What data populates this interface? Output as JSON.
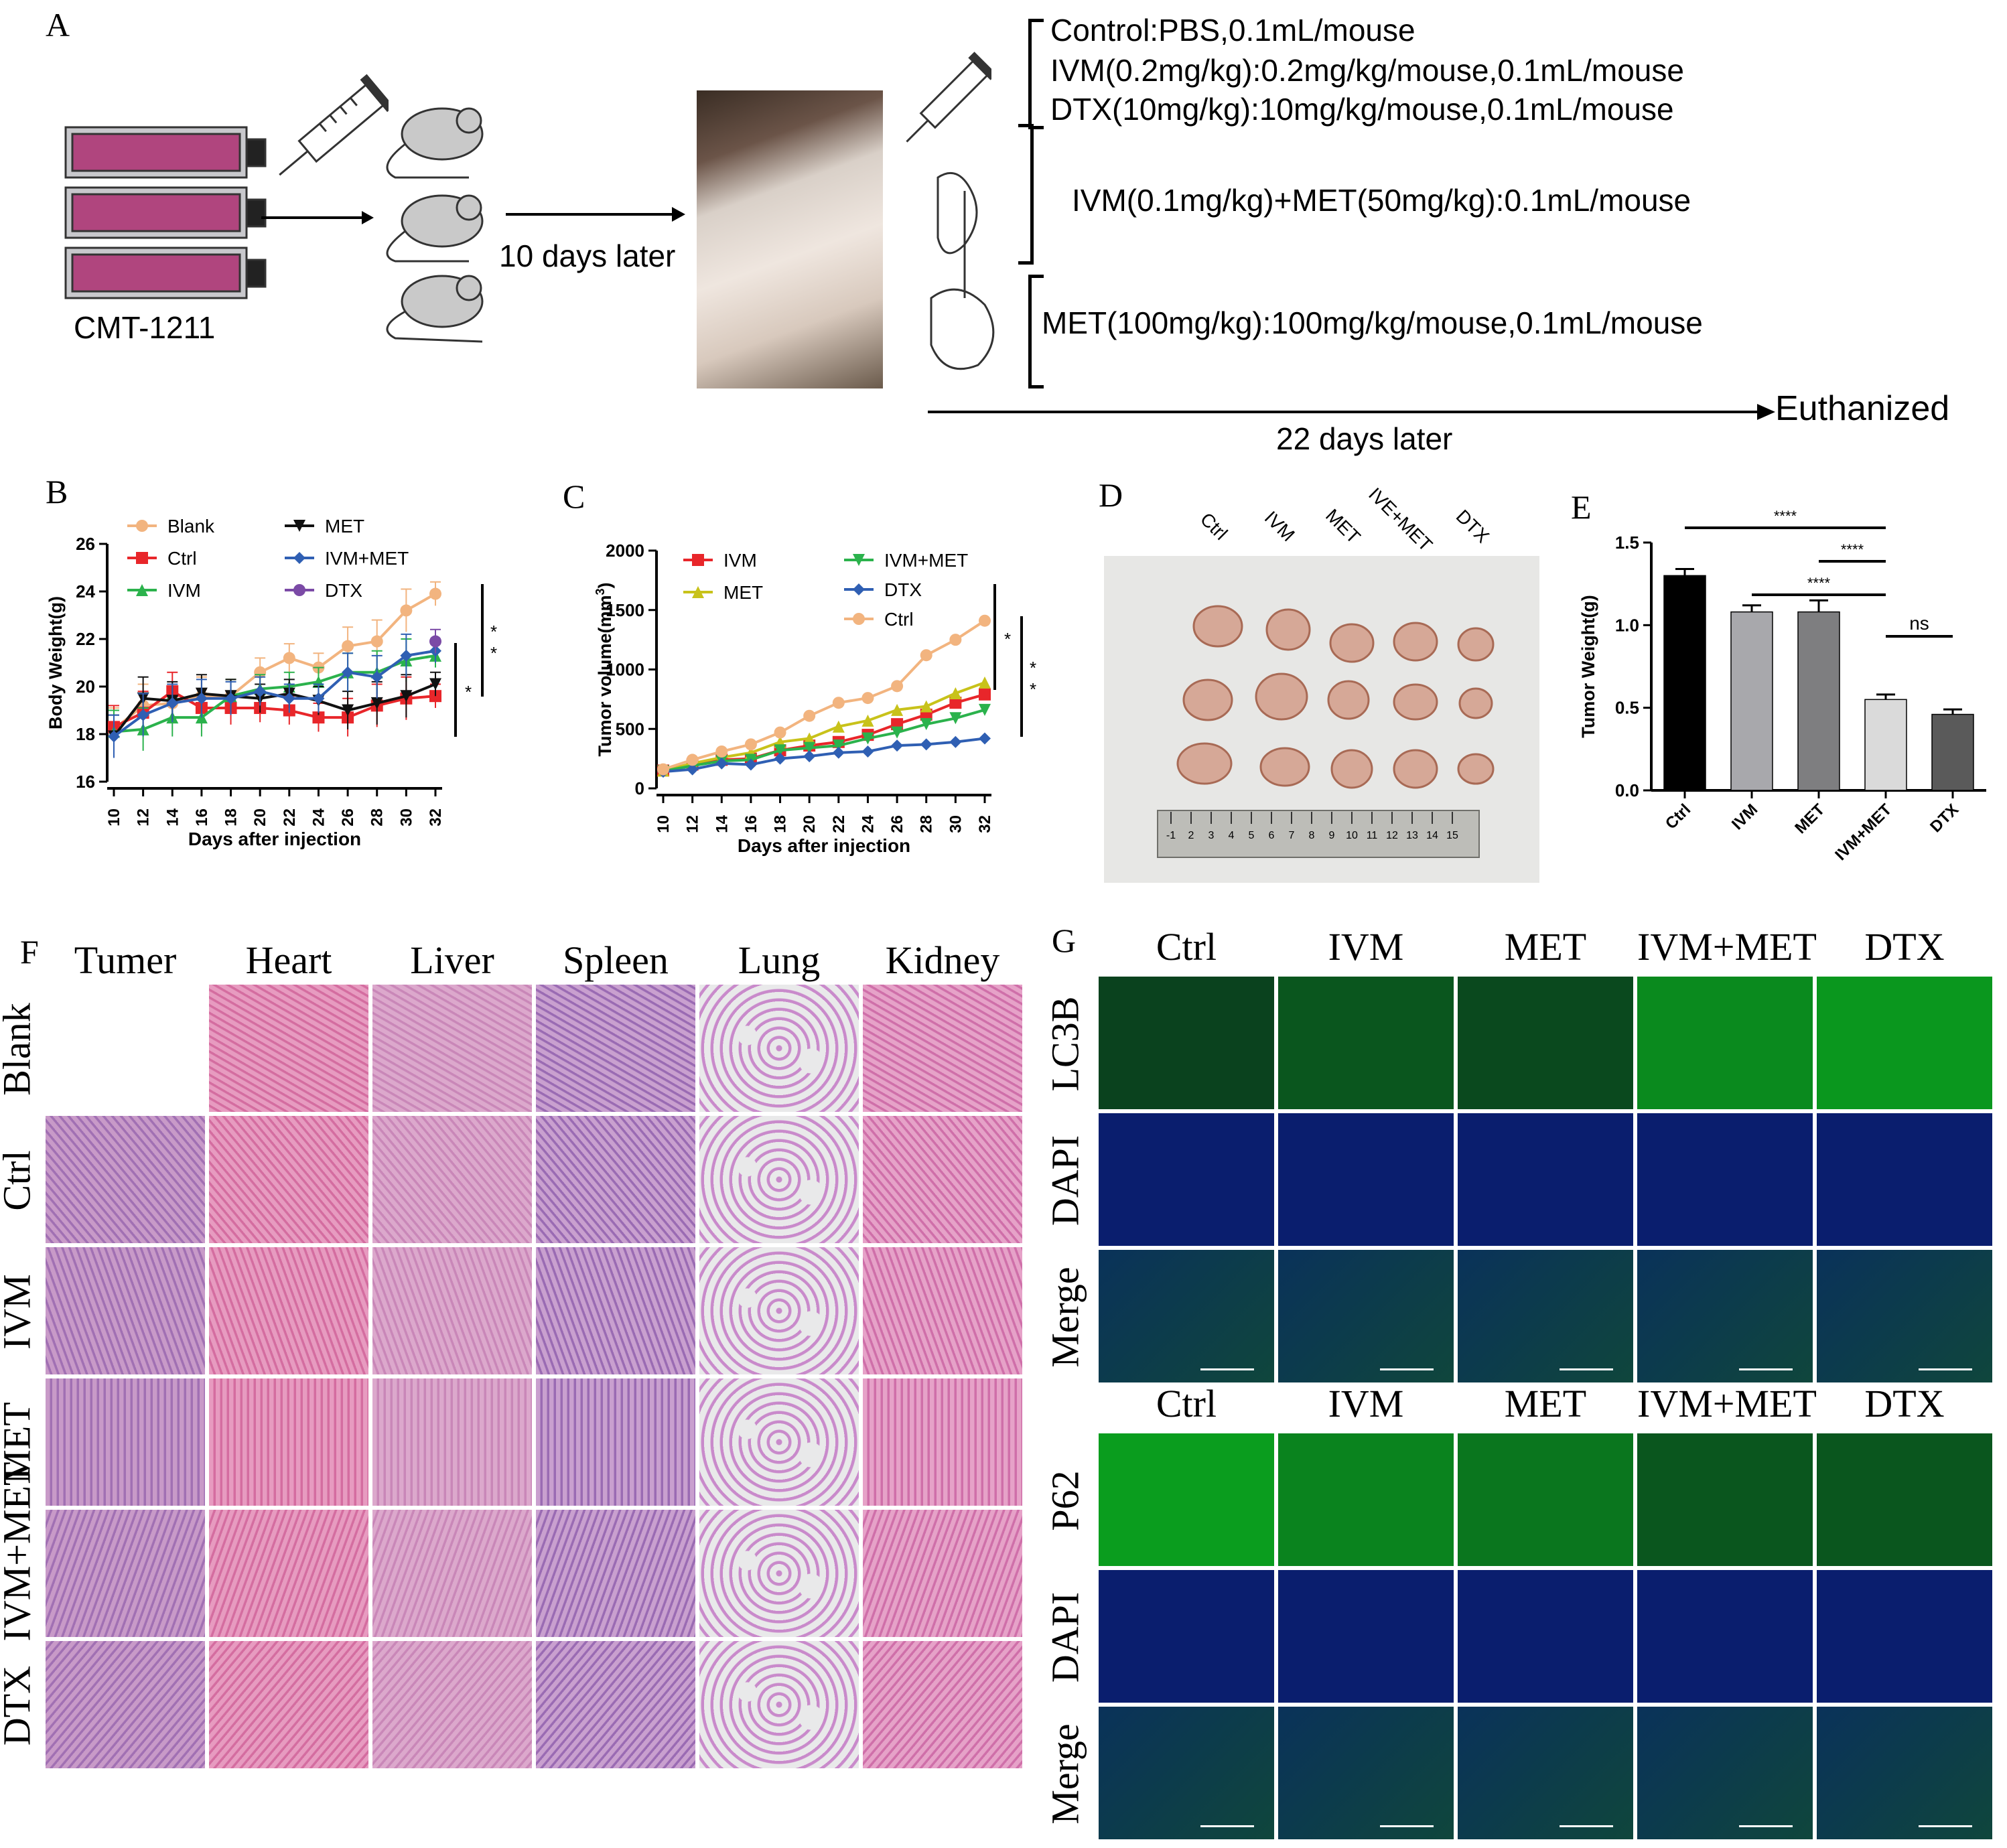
{
  "panel_labels": {
    "A": "A",
    "B": "B",
    "C": "C",
    "D": "D",
    "E": "E",
    "F": "F",
    "G": "G"
  },
  "panelA": {
    "cell_line": "CMT-1211",
    "step1": "10 days later",
    "protocol": [
      "Control:PBS,0.1mL/mouse",
      "IVM(0.2mg/kg):0.2mg/kg/mouse,0.1mL/mouse",
      "DTX(10mg/kg):10mg/kg/mouse,0.1mL/mouse",
      "IVM(0.1mg/kg)+MET(50mg/kg):0.1mL/mouse",
      "MET(100mg/kg):100mg/kg/mouse,0.1mL/mouse"
    ],
    "end_label": "Euthanized",
    "duration": "22 days later"
  },
  "panelD": {
    "col_labels": [
      "Ctrl",
      "IVM",
      "MET",
      "IVE+MET",
      "DTX"
    ],
    "ruler_ticks": [
      "-1",
      "2",
      "3",
      "4",
      "5",
      "6",
      "7",
      "8",
      "9",
      "10",
      "11",
      "12",
      "13",
      "14",
      "15"
    ]
  },
  "panelF": {
    "col_labels": [
      "Tumer",
      "Heart",
      "Liver",
      "Spleen",
      "Lung",
      "Kidney"
    ],
    "row_labels": [
      "Blank",
      "Ctrl",
      "IVM",
      "MET",
      "IVM+MET",
      "DTX"
    ]
  },
  "panelG": {
    "top_cols": [
      "Ctrl",
      "IVM",
      "MET",
      "IVM+MET",
      "DTX"
    ],
    "top_rows": [
      "LC3B",
      "DAPI",
      "Merge"
    ],
    "bottom_cols": [
      "Ctrl",
      "IVM",
      "MET",
      "IVM+MET",
      "DTX"
    ],
    "bottom_rows": [
      "P62",
      "DAPI",
      "Merge"
    ]
  },
  "colors": {
    "blank": "#f2b47f",
    "ctrl": "#e8262a",
    "ivm": "#2bb24c",
    "met": "#111111",
    "ivm_met": "#2f5fb3",
    "dtx": "#7b4aa6"
  },
  "chart_data": [
    {
      "type": "line",
      "id": "B",
      "xlabel": "Days after injection",
      "ylabel": "Body Weight(g)",
      "x": [
        10,
        12,
        14,
        16,
        18,
        20,
        22,
        24,
        26,
        28,
        30,
        32
      ],
      "ylim": [
        16,
        26
      ],
      "yticks": [
        16,
        18,
        20,
        22,
        24,
        26
      ],
      "series": [
        {
          "name": "Blank",
          "color": "#f2b47f",
          "marker": "circle",
          "values": [
            18.2,
            19.2,
            19.3,
            19.6,
            19.6,
            20.6,
            21.2,
            20.8,
            21.7,
            21.9,
            23.2,
            23.9
          ]
        },
        {
          "name": "Ctrl",
          "color": "#e8262a",
          "marker": "square",
          "values": [
            18.3,
            18.9,
            19.8,
            19.1,
            19.1,
            19.1,
            19.0,
            18.7,
            18.7,
            19.2,
            19.5,
            19.6
          ]
        },
        {
          "name": "IVM",
          "color": "#2bb24c",
          "marker": "triangle-up",
          "values": [
            18.1,
            18.2,
            18.7,
            18.7,
            19.6,
            19.9,
            20.0,
            20.2,
            20.6,
            20.6,
            21.1,
            21.3
          ]
        },
        {
          "name": "MET",
          "color": "#111111",
          "marker": "triangle-down",
          "values": [
            17.9,
            19.5,
            19.4,
            19.7,
            19.6,
            19.5,
            19.7,
            19.4,
            19.0,
            19.3,
            19.6,
            20.1
          ]
        },
        {
          "name": "IVM+MET",
          "color": "#2f5fb3",
          "marker": "diamond",
          "values": [
            17.9,
            18.8,
            19.3,
            19.5,
            19.5,
            19.8,
            19.5,
            19.5,
            20.6,
            20.4,
            21.3,
            21.5
          ]
        },
        {
          "name": "DTX",
          "color": "#7b4aa6",
          "marker": "circle",
          "values": [
            null,
            null,
            null,
            null,
            null,
            null,
            null,
            null,
            null,
            null,
            null,
            21.9
          ]
        }
      ],
      "errors": [
        0.9,
        0.9,
        0.8,
        0.8,
        0.7,
        0.6,
        0.6,
        0.6,
        0.8,
        0.9,
        0.9,
        0.5
      ],
      "sig": [
        "*",
        "*",
        "*"
      ]
    },
    {
      "type": "line",
      "id": "C",
      "xlabel": "Days after injection",
      "ylabel": "Tumor volume(mm",
      "ylabel_sup": "3",
      "ylabel_end": ")",
      "x": [
        10,
        12,
        14,
        16,
        18,
        20,
        22,
        24,
        26,
        28,
        30,
        32
      ],
      "ylim": [
        0,
        2000
      ],
      "yticks": [
        0,
        500,
        1000,
        1500,
        2000
      ],
      "series": [
        {
          "name": "IVM",
          "color": "#e8262a",
          "marker": "square",
          "values": [
            150,
            200,
            240,
            250,
            320,
            360,
            390,
            450,
            540,
            620,
            720,
            790
          ]
        },
        {
          "name": "MET",
          "color": "#c8c21a",
          "marker": "triangle-up",
          "values": [
            150,
            210,
            260,
            300,
            390,
            420,
            520,
            570,
            660,
            690,
            800,
            890
          ]
        },
        {
          "name": "IVM+MET",
          "color": "#2bb24c",
          "marker": "triangle-down",
          "values": [
            145,
            190,
            230,
            240,
            320,
            340,
            360,
            420,
            470,
            540,
            590,
            660
          ]
        },
        {
          "name": "DTX",
          "color": "#2f5fb3",
          "marker": "diamond",
          "values": [
            140,
            160,
            210,
            200,
            250,
            270,
            300,
            310,
            360,
            370,
            390,
            420
          ]
        },
        {
          "name": "Ctrl",
          "color": "#f2b47f",
          "marker": "circle",
          "values": [
            160,
            240,
            310,
            370,
            470,
            610,
            720,
            760,
            860,
            1120,
            1250,
            1410
          ]
        }
      ],
      "sig": [
        "*",
        "*",
        "*"
      ]
    },
    {
      "type": "bar",
      "id": "E",
      "ylabel": "Tumor Weight(g)",
      "categories": [
        "Ctrl",
        "IVM",
        "MET",
        "IVM+MET",
        "DTX"
      ],
      "values": [
        1.3,
        1.08,
        1.08,
        0.55,
        0.46
      ],
      "errors": [
        0.04,
        0.04,
        0.07,
        0.03,
        0.03
      ],
      "colors": [
        "#000000",
        "#a8a8ac",
        "#7e7e80",
        "#dadada",
        "#5a5a5a"
      ],
      "ylim": [
        0,
        1.5
      ],
      "yticks": [
        "0.0",
        "0.5",
        "1.0",
        "1.5"
      ],
      "comparisons": [
        {
          "from": 0,
          "to": 3,
          "label": "****"
        },
        {
          "from": 2,
          "to": 3,
          "label": "****"
        },
        {
          "from": 1,
          "to": 3,
          "label": "****"
        },
        {
          "from": 3,
          "to": 4,
          "label": "ns"
        }
      ]
    }
  ]
}
